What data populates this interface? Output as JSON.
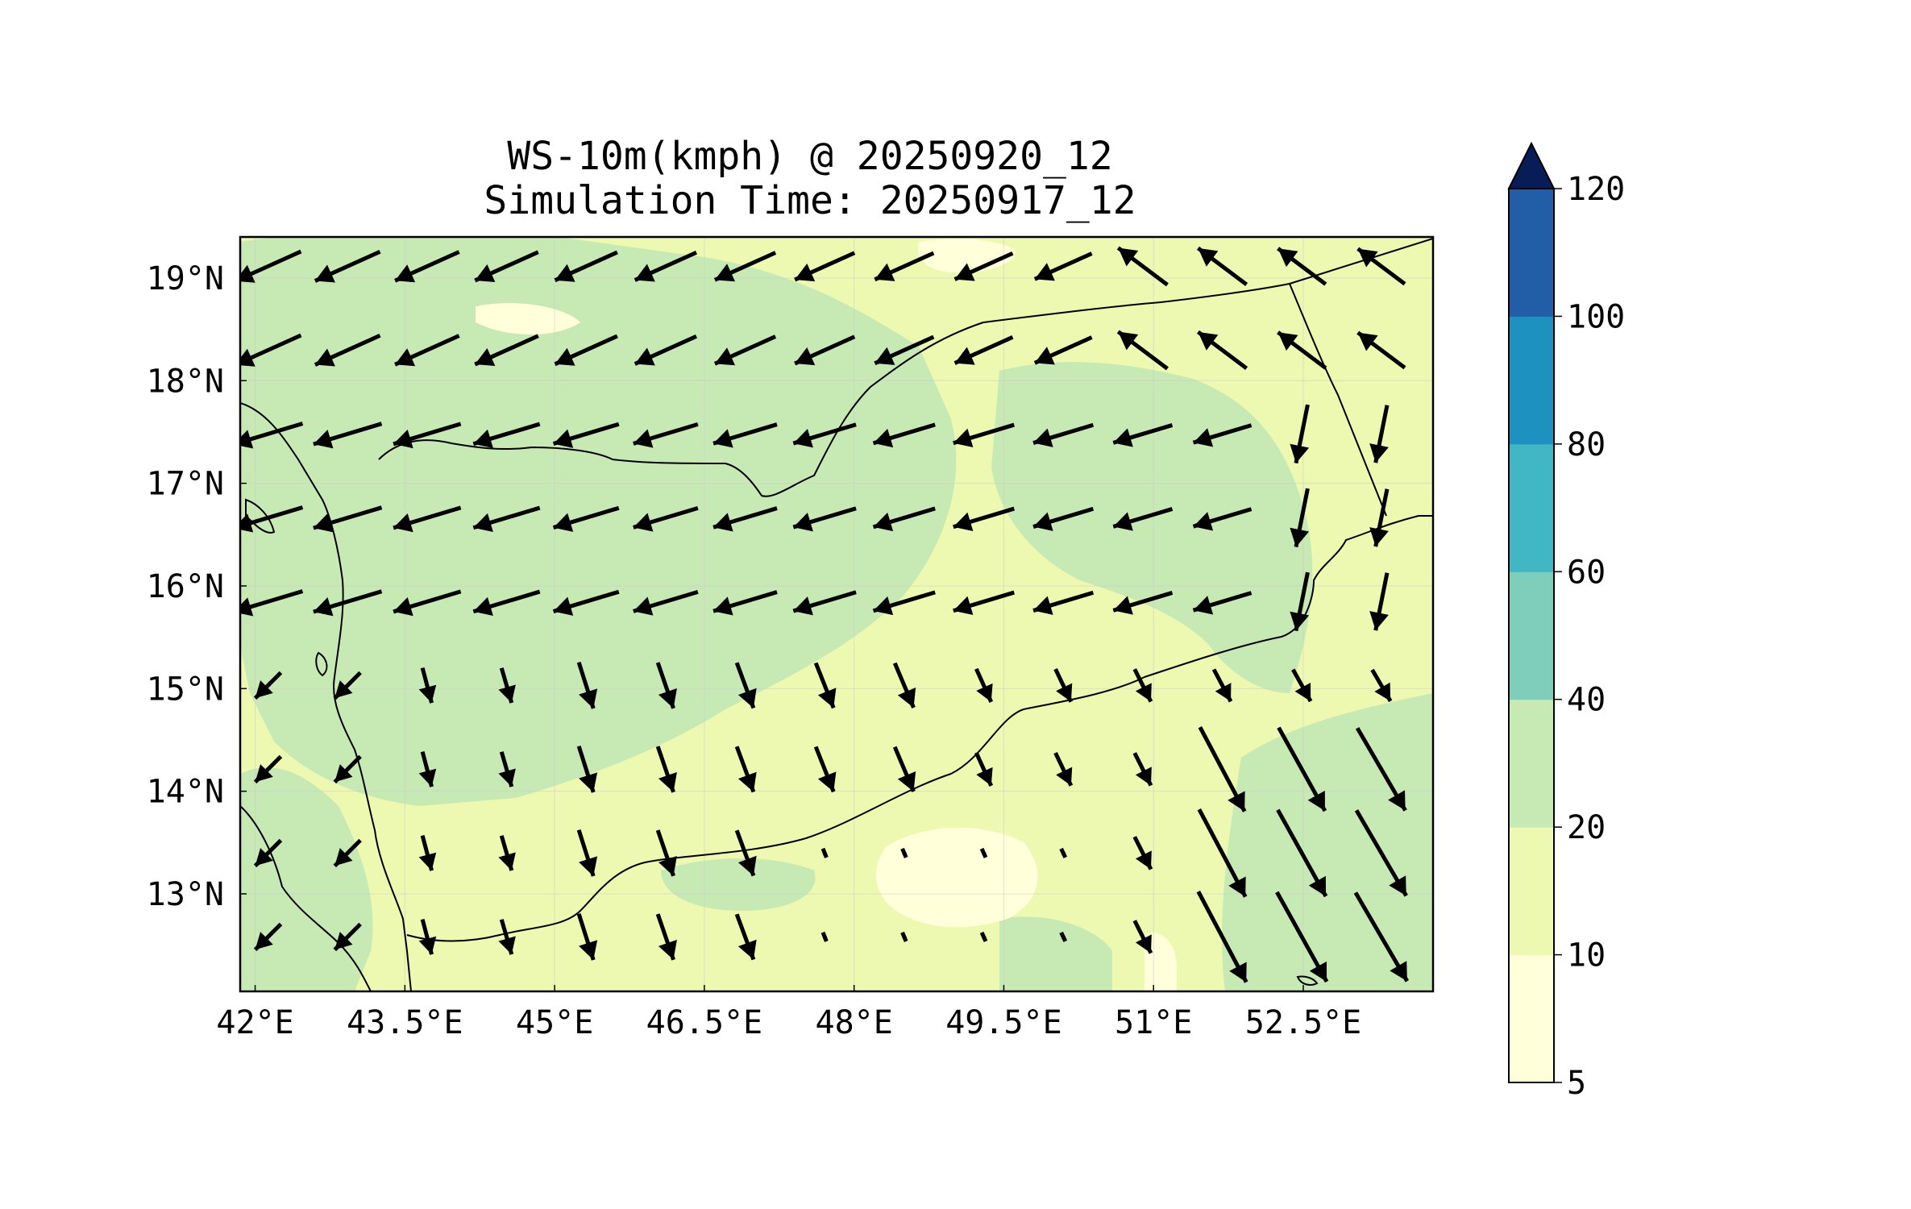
{
  "figure": {
    "title_line1": "WS-10m(kmph) @ 20250920_12",
    "title_line2": "Simulation Time: 20250917_12"
  },
  "map": {
    "lon_range": [
      41.85,
      53.8
    ],
    "lat_range": [
      12.05,
      19.4
    ],
    "lon_ticks": [
      {
        "value": 42.0,
        "label": "42°E"
      },
      {
        "value": 43.5,
        "label": "43.5°E"
      },
      {
        "value": 45.0,
        "label": "45°E"
      },
      {
        "value": 46.5,
        "label": "46.5°E"
      },
      {
        "value": 48.0,
        "label": "48°E"
      },
      {
        "value": 49.5,
        "label": "49.5°E"
      },
      {
        "value": 51.0,
        "label": "51°E"
      },
      {
        "value": 52.5,
        "label": "52.5°E"
      }
    ],
    "lat_ticks": [
      {
        "value": 19.0,
        "label": "19°N"
      },
      {
        "value": 18.0,
        "label": "18°N"
      },
      {
        "value": 17.0,
        "label": "17°N"
      },
      {
        "value": 16.0,
        "label": "16°N"
      },
      {
        "value": 15.0,
        "label": "15°N"
      },
      {
        "value": 14.0,
        "label": "14°N"
      },
      {
        "value": 13.0,
        "label": "13°N"
      }
    ]
  },
  "colorbar": {
    "levels": [
      5,
      10,
      20,
      40,
      60,
      80,
      100,
      120
    ],
    "labels": [
      "5",
      "10",
      "20",
      "40",
      "60",
      "80",
      "100",
      "120"
    ],
    "colors": [
      "#ffffd9",
      "#edf8b1",
      "#c7e9b4",
      "#7fcdbb",
      "#41b6c4",
      "#1d91c0",
      "#225ea8",
      "#253494"
    ],
    "extend_color": "#081d58",
    "extend": "max"
  }
}
